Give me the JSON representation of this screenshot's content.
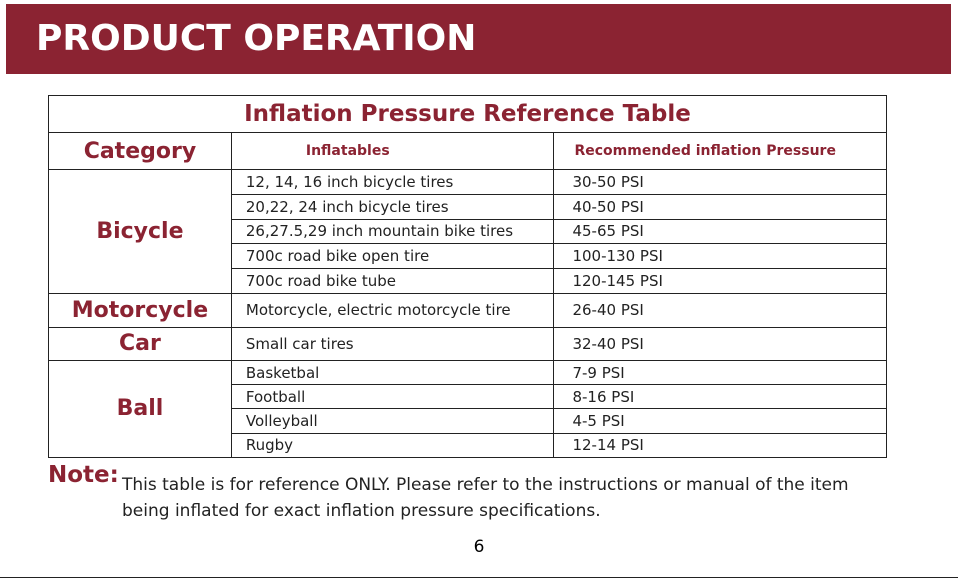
{
  "header": {
    "title": "PRODUCT OPERATION"
  },
  "table": {
    "title": "Inflation Pressure Reference Table",
    "headers": [
      "Category",
      "Inflatables",
      "Recommended inflation Pressure"
    ],
    "groups": [
      {
        "category": "Bicycle",
        "rows": [
          [
            "12, 14, 16 inch bicycle tires",
            "30-50 PSI"
          ],
          [
            "20,22, 24 inch bicycle tires",
            "40-50 PSI"
          ],
          [
            "26,27.5,29 inch mountain bike tires",
            "45-65 PSI"
          ],
          [
            "700c road bike open tire",
            "100-130 PSI"
          ],
          [
            "700c road bike tube",
            "120-145 PSI"
          ]
        ]
      },
      {
        "category": "Motorcycle",
        "rows": [
          [
            "Motorcycle, electric motorcycle tire",
            "26-40 PSI"
          ]
        ]
      },
      {
        "category": "Car",
        "rows": [
          [
            "Small car tires",
            "32-40 PSI"
          ]
        ]
      },
      {
        "category": "Ball",
        "rows": [
          [
            "Basketbal",
            "7-9 PSI"
          ],
          [
            "Football",
            "8-16 PSI"
          ],
          [
            "Volleyball",
            "4-5 PSI"
          ],
          [
            "Rugby",
            "12-14 PSI"
          ]
        ]
      }
    ]
  },
  "note": {
    "label": "Note:",
    "text": "This table is for reference ONLY. Please refer to the instructions or manual of the item being inflated for exact inflation pressure specifications."
  },
  "page_number": "6"
}
